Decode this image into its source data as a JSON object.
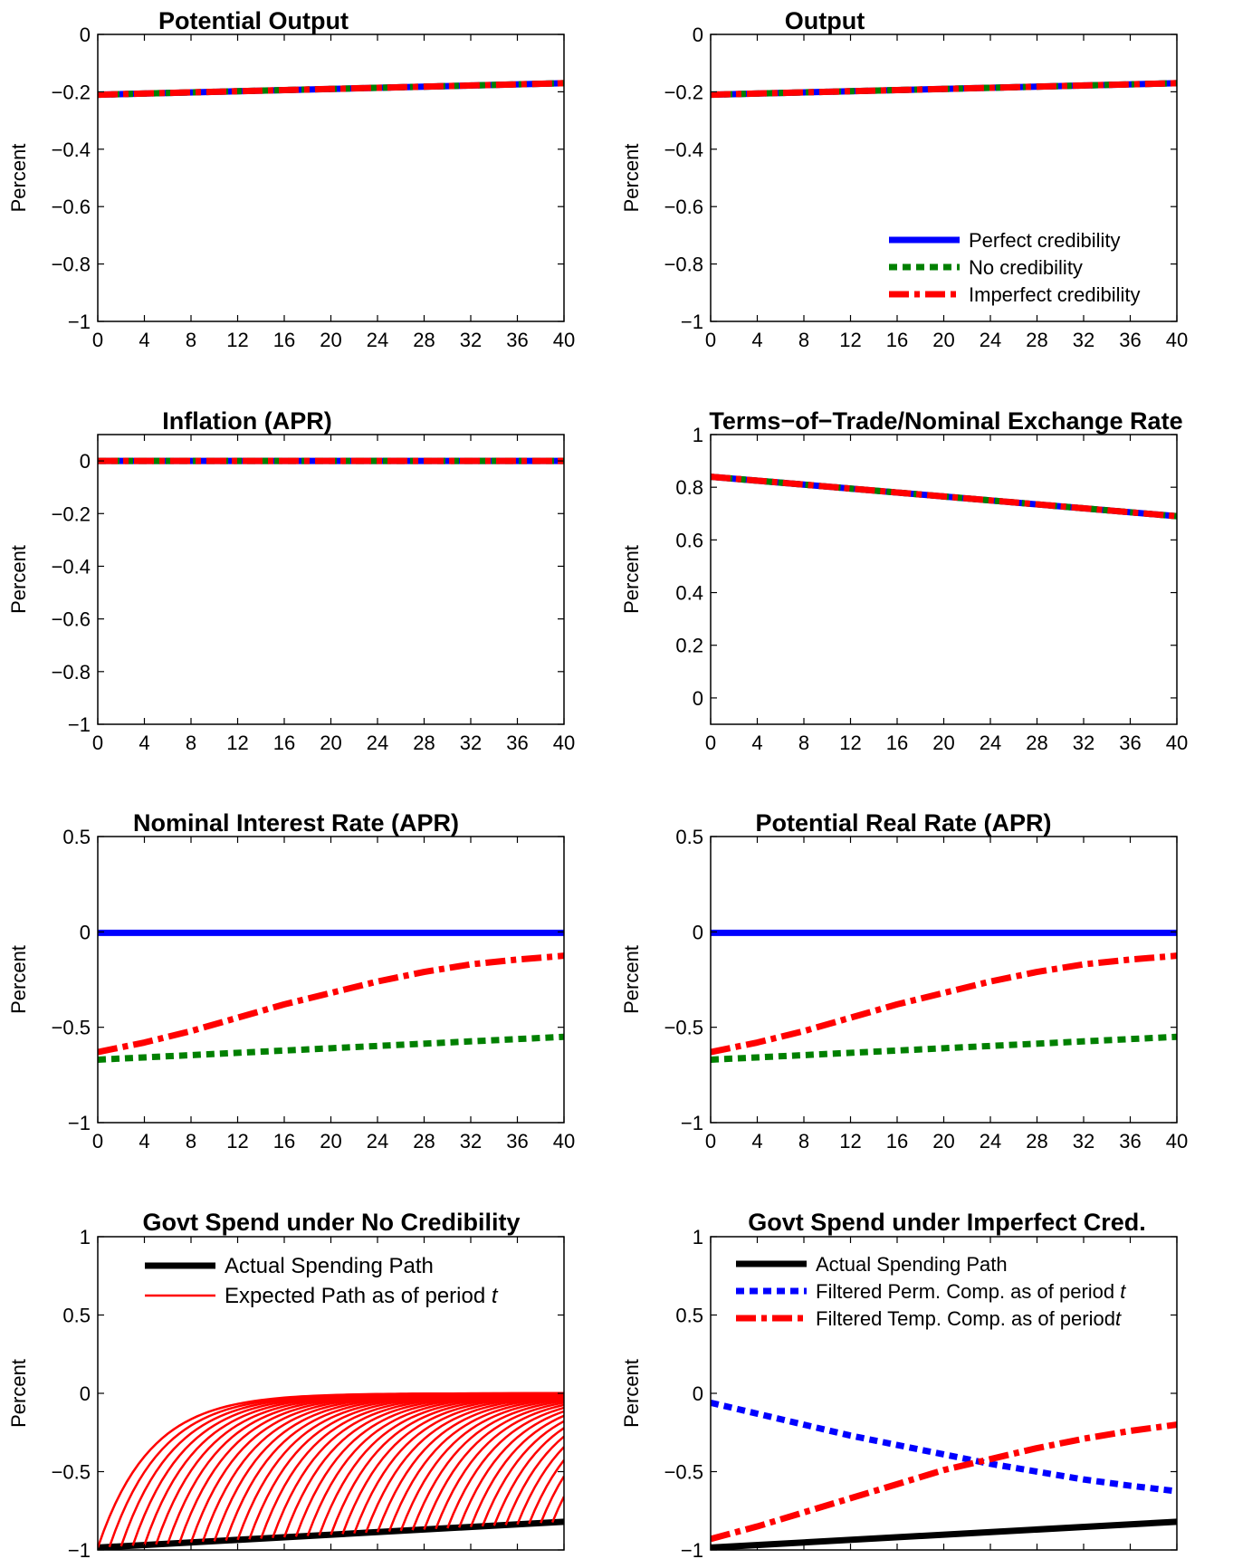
{
  "chart_data": [
    {
      "type": "line",
      "title": "Potential Output",
      "ylabel": "Percent",
      "xlim": [
        0,
        40
      ],
      "ylim": [
        -1,
        0
      ],
      "x_ticks": [
        "0",
        "4",
        "8",
        "12",
        "16",
        "20",
        "24",
        "28",
        "32",
        "36",
        "40"
      ],
      "y_ticks": [
        "0",
        "−0.2",
        "−0.4",
        "−0.6",
        "−0.8",
        "−1"
      ],
      "series": [
        {
          "color": "#0000ff",
          "style": "solid",
          "x": [
            0,
            40
          ],
          "y": [
            -0.21,
            -0.17
          ]
        },
        {
          "color": "#008000",
          "style": "dotted",
          "x": [
            0,
            40
          ],
          "y": [
            -0.21,
            -0.17
          ]
        },
        {
          "color": "#ff0000",
          "style": "dashdot",
          "x": [
            0,
            40
          ],
          "y": [
            -0.21,
            -0.17
          ]
        }
      ]
    },
    {
      "type": "line",
      "title": "Output",
      "ylabel": "Percent",
      "xlim": [
        0,
        40
      ],
      "ylim": [
        -1,
        0
      ],
      "x_ticks": [
        "0",
        "4",
        "8",
        "12",
        "16",
        "20",
        "24",
        "28",
        "32",
        "36",
        "40"
      ],
      "y_ticks": [
        "0",
        "−0.2",
        "−0.4",
        "−0.6",
        "−0.8",
        "−1"
      ],
      "legend": {
        "position": "lower-right",
        "entries": [
          {
            "label": "Perfect credibility",
            "color": "#0000ff",
            "style": "solid"
          },
          {
            "label": "No credibility",
            "color": "#008000",
            "style": "dotted"
          },
          {
            "label": "Imperfect credibility",
            "color": "#ff0000",
            "style": "dashdot"
          }
        ]
      },
      "series": [
        {
          "name": "Perfect credibility",
          "color": "#0000ff",
          "style": "solid",
          "x": [
            0,
            40
          ],
          "y": [
            -0.21,
            -0.17
          ]
        },
        {
          "name": "No credibility",
          "color": "#008000",
          "style": "dotted",
          "x": [
            0,
            40
          ],
          "y": [
            -0.21,
            -0.17
          ]
        },
        {
          "name": "Imperfect credibility",
          "color": "#ff0000",
          "style": "dashdot",
          "x": [
            0,
            40
          ],
          "y": [
            -0.21,
            -0.17
          ]
        }
      ]
    },
    {
      "type": "line",
      "title": "Inflation (APR)",
      "ylabel": "Percent",
      "xlim": [
        0,
        40
      ],
      "ylim": [
        -1,
        0.1
      ],
      "x_ticks": [
        "0",
        "4",
        "8",
        "12",
        "16",
        "20",
        "24",
        "28",
        "32",
        "36",
        "40"
      ],
      "y_ticks": [
        "0",
        "−0.2",
        "−0.4",
        "−0.6",
        "−0.8",
        "−1"
      ],
      "series": [
        {
          "color": "#0000ff",
          "style": "solid",
          "x": [
            0,
            40
          ],
          "y": [
            0,
            0
          ]
        },
        {
          "color": "#008000",
          "style": "dotted",
          "x": [
            0,
            40
          ],
          "y": [
            0,
            0
          ]
        },
        {
          "color": "#ff0000",
          "style": "dashdot",
          "x": [
            0,
            40
          ],
          "y": [
            0,
            0
          ]
        }
      ]
    },
    {
      "type": "line",
      "title": "Terms−of−Trade/Nominal Exchange Rate",
      "ylabel": "Percent",
      "xlim": [
        0,
        40
      ],
      "ylim": [
        -0.1,
        1
      ],
      "x_ticks": [
        "0",
        "4",
        "8",
        "12",
        "16",
        "20",
        "24",
        "28",
        "32",
        "36",
        "40"
      ],
      "y_ticks": [
        "1",
        "0.8",
        "0.6",
        "0.4",
        "0.2",
        "0"
      ],
      "series": [
        {
          "color": "#0000ff",
          "style": "solid",
          "x": [
            0,
            40
          ],
          "y": [
            0.84,
            0.69
          ]
        },
        {
          "color": "#008000",
          "style": "dotted",
          "x": [
            0,
            40
          ],
          "y": [
            0.84,
            0.69
          ]
        },
        {
          "color": "#ff0000",
          "style": "dashdot",
          "x": [
            0,
            40
          ],
          "y": [
            0.84,
            0.69
          ]
        }
      ]
    },
    {
      "type": "line",
      "title": "Nominal Interest Rate (APR)",
      "ylabel": "Percent",
      "xlim": [
        0,
        40
      ],
      "ylim": [
        -1,
        0.5
      ],
      "x_ticks": [
        "0",
        "4",
        "8",
        "12",
        "16",
        "20",
        "24",
        "28",
        "32",
        "36",
        "40"
      ],
      "y_ticks": [
        "0.5",
        "0",
        "−0.5",
        "−1"
      ],
      "series": [
        {
          "color": "#0000ff",
          "style": "solid",
          "x": [
            0,
            40
          ],
          "y": [
            -0.005,
            -0.005
          ]
        },
        {
          "color": "#008000",
          "style": "dotted",
          "x": [
            0,
            10,
            20,
            30,
            40
          ],
          "y": [
            -0.67,
            -0.64,
            -0.61,
            -0.58,
            -0.55
          ]
        },
        {
          "color": "#ff0000",
          "style": "dashdot",
          "x": [
            0,
            4,
            8,
            12,
            16,
            20,
            24,
            28,
            32,
            36,
            40
          ],
          "y": [
            -0.63,
            -0.58,
            -0.52,
            -0.45,
            -0.38,
            -0.32,
            -0.26,
            -0.21,
            -0.17,
            -0.145,
            -0.125
          ]
        }
      ]
    },
    {
      "type": "line",
      "title": "Potential Real Rate (APR)",
      "ylabel": "Percent",
      "xlim": [
        0,
        40
      ],
      "ylim": [
        -1,
        0.5
      ],
      "x_ticks": [
        "0",
        "4",
        "8",
        "12",
        "16",
        "20",
        "24",
        "28",
        "32",
        "36",
        "40"
      ],
      "y_ticks": [
        "0.5",
        "0",
        "−0.5",
        "−1"
      ],
      "series": [
        {
          "color": "#0000ff",
          "style": "solid",
          "x": [
            0,
            40
          ],
          "y": [
            -0.005,
            -0.005
          ]
        },
        {
          "color": "#008000",
          "style": "dotted",
          "x": [
            0,
            10,
            20,
            30,
            40
          ],
          "y": [
            -0.67,
            -0.64,
            -0.61,
            -0.58,
            -0.55
          ]
        },
        {
          "color": "#ff0000",
          "style": "dashdot",
          "x": [
            0,
            4,
            8,
            12,
            16,
            20,
            24,
            28,
            32,
            36,
            40
          ],
          "y": [
            -0.63,
            -0.58,
            -0.52,
            -0.45,
            -0.38,
            -0.32,
            -0.26,
            -0.21,
            -0.17,
            -0.145,
            -0.125
          ]
        }
      ]
    },
    {
      "type": "line",
      "title": "Govt Spend under No Credibility",
      "ylabel": "Percent",
      "xlim": [
        0,
        40
      ],
      "ylim": [
        -1,
        1
      ],
      "x_ticks": [
        "0",
        "4",
        "8",
        "12",
        "16",
        "20",
        "24",
        "28",
        "32",
        "36",
        "40"
      ],
      "y_ticks": [
        "1",
        "0.5",
        "0",
        "−0.5",
        "−1"
      ],
      "legend": {
        "position": "top-left",
        "entries": [
          {
            "label": "Actual Spending Path",
            "color": "#000000",
            "style": "solid-thick"
          },
          {
            "label": "Expected Path as of period ",
            "label_italic": "t",
            "color": "#ff0000",
            "style": "solid-thin"
          }
        ]
      },
      "series": [
        {
          "name": "Actual Spending Path",
          "color": "#000000",
          "style": "solid",
          "x": [
            0,
            40
          ],
          "y": [
            -0.985,
            -0.82
          ]
        },
        {
          "name": "Expected Path as of period t",
          "color": "#ff0000",
          "style": "fan",
          "starts": [
            0,
            1,
            2,
            3,
            4,
            5,
            6,
            7,
            8,
            9,
            10,
            11,
            12,
            13,
            14,
            15,
            16,
            17,
            18,
            19,
            20,
            21,
            22,
            23,
            24,
            25,
            26,
            27,
            28,
            29,
            30,
            31,
            32,
            33,
            34,
            35,
            36,
            37,
            38,
            39,
            40
          ],
          "start_level": {
            "x": [
              0,
              40
            ],
            "y": [
              -0.985,
              -0.82
            ]
          },
          "asymptote": 0,
          "decay_per_period": 0.8
        }
      ]
    },
    {
      "type": "line",
      "title": "Govt Spend under Imperfect Cred.",
      "ylabel": "Percent",
      "xlim": [
        0,
        40
      ],
      "ylim": [
        -1,
        1
      ],
      "x_ticks": [
        "0",
        "4",
        "8",
        "12",
        "16",
        "20",
        "24",
        "28",
        "32",
        "36",
        "40"
      ],
      "y_ticks": [
        "1",
        "0.5",
        "0",
        "−0.5",
        "−1"
      ],
      "legend": {
        "position": "top-left",
        "entries": [
          {
            "label": "Actual Spending Path",
            "color": "#000000",
            "style": "solid-thick"
          },
          {
            "label": "Filtered Perm. Comp. as of period ",
            "label_italic": "t",
            "color": "#0000ff",
            "style": "dotted"
          },
          {
            "label": "Filtered Temp. Comp. as of period",
            "label_italic": "t",
            "color": "#ff0000",
            "style": "dashdot"
          }
        ]
      },
      "series": [
        {
          "name": "Actual Spending Path",
          "color": "#000000",
          "style": "solid",
          "x": [
            0,
            40
          ],
          "y": [
            -0.985,
            -0.82
          ]
        },
        {
          "name": "Filtered Perm. Comp. as of period t",
          "color": "#0000ff",
          "style": "dotted",
          "x": [
            0,
            4,
            8,
            12,
            16,
            20,
            24,
            28,
            32,
            36,
            40
          ],
          "y": [
            -0.06,
            -0.13,
            -0.2,
            -0.27,
            -0.33,
            -0.39,
            -0.45,
            -0.5,
            -0.55,
            -0.59,
            -0.625
          ]
        },
        {
          "name": "Filtered Temp. Comp. as of period t",
          "color": "#ff0000",
          "style": "dashdot",
          "x": [
            0,
            4,
            8,
            12,
            16,
            20,
            24,
            28,
            32,
            36,
            40
          ],
          "y": [
            -0.93,
            -0.85,
            -0.76,
            -0.67,
            -0.58,
            -0.49,
            -0.42,
            -0.35,
            -0.29,
            -0.24,
            -0.2
          ]
        }
      ]
    }
  ]
}
